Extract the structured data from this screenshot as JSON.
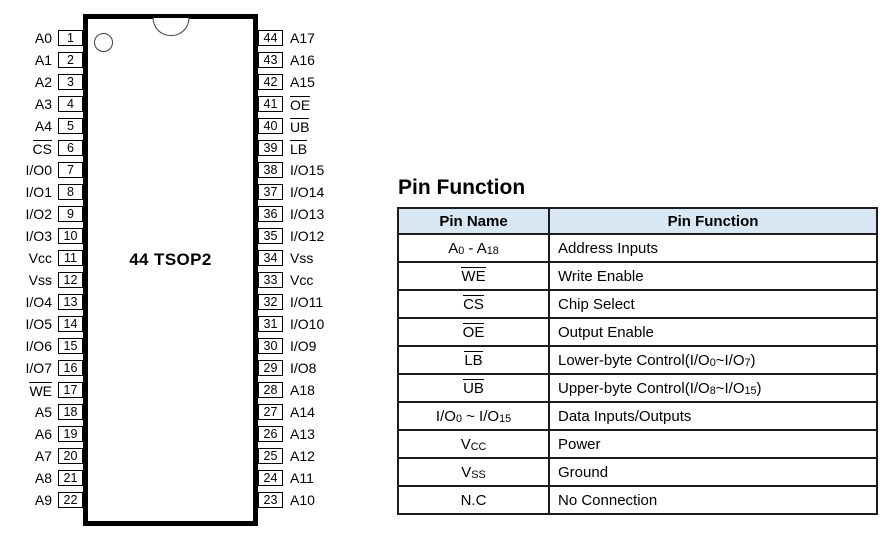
{
  "colors": {
    "header_bg": "#d9e7f4",
    "table_border": "#1c1c1c",
    "chip_border": "#000000"
  },
  "chip": {
    "title": "44 TSOP2",
    "left_pins": [
      {
        "num": "1",
        "label": "A0"
      },
      {
        "num": "2",
        "label": "A1"
      },
      {
        "num": "3",
        "label": "A2"
      },
      {
        "num": "4",
        "label": "A3"
      },
      {
        "num": "5",
        "label": "A4"
      },
      {
        "num": "6",
        "label": "CS",
        "overline": true
      },
      {
        "num": "7",
        "label": "I/O0"
      },
      {
        "num": "8",
        "label": "I/O1"
      },
      {
        "num": "9",
        "label": "I/O2"
      },
      {
        "num": "10",
        "label": "I/O3"
      },
      {
        "num": "11",
        "label": "Vcc"
      },
      {
        "num": "12",
        "label": "Vss"
      },
      {
        "num": "13",
        "label": "I/O4"
      },
      {
        "num": "14",
        "label": "I/O5"
      },
      {
        "num": "15",
        "label": "I/O6"
      },
      {
        "num": "16",
        "label": "I/O7"
      },
      {
        "num": "17",
        "label": "WE",
        "overline": true
      },
      {
        "num": "18",
        "label": "A5"
      },
      {
        "num": "19",
        "label": "A6"
      },
      {
        "num": "20",
        "label": "A7"
      },
      {
        "num": "21",
        "label": "A8"
      },
      {
        "num": "22",
        "label": "A9"
      }
    ],
    "right_pins": [
      {
        "num": "44",
        "label": "A17"
      },
      {
        "num": "43",
        "label": "A16"
      },
      {
        "num": "42",
        "label": "A15"
      },
      {
        "num": "41",
        "label": "OE",
        "overline": true
      },
      {
        "num": "40",
        "label": "UB",
        "overline": true
      },
      {
        "num": "39",
        "label": "LB",
        "overline": true
      },
      {
        "num": "38",
        "label": "I/O15"
      },
      {
        "num": "37",
        "label": "I/O14"
      },
      {
        "num": "36",
        "label": "I/O13"
      },
      {
        "num": "35",
        "label": "I/O12"
      },
      {
        "num": "34",
        "label": "Vss"
      },
      {
        "num": "33",
        "label": "Vcc"
      },
      {
        "num": "32",
        "label": "I/O11"
      },
      {
        "num": "31",
        "label": "I/O10"
      },
      {
        "num": "30",
        "label": "I/O9"
      },
      {
        "num": "29",
        "label": "I/O8"
      },
      {
        "num": "28",
        "label": "A18"
      },
      {
        "num": "27",
        "label": "A14"
      },
      {
        "num": "26",
        "label": "A13"
      },
      {
        "num": "25",
        "label": "A12"
      },
      {
        "num": "24",
        "label": "A11"
      },
      {
        "num": "23",
        "label": "A10"
      }
    ]
  },
  "table": {
    "section_title": "Pin Function",
    "headers": [
      "Pin Name",
      "Pin Function"
    ],
    "rows": [
      {
        "name": [
          {
            "t": "A"
          },
          {
            "t": "0",
            "sub": true
          },
          {
            "t": " - A"
          },
          {
            "t": "18",
            "sub": true
          }
        ],
        "function": "Address Inputs"
      },
      {
        "name": [
          {
            "t": "WE",
            "overline": true
          }
        ],
        "function": "Write Enable"
      },
      {
        "name": [
          {
            "t": "CS",
            "overline": true
          }
        ],
        "function": "Chip Select"
      },
      {
        "name": [
          {
            "t": "OE",
            "overline": true
          }
        ],
        "function": "Output Enable"
      },
      {
        "name": [
          {
            "t": "LB",
            "overline": true
          }
        ],
        "function": [
          {
            "t": "Lower-byte Control(I/O"
          },
          {
            "t": "0",
            "sub": true
          },
          {
            "t": "~I/O"
          },
          {
            "t": "7",
            "sub": true
          },
          {
            "t": ")"
          }
        ]
      },
      {
        "name": [
          {
            "t": "UB",
            "overline": true
          }
        ],
        "function": [
          {
            "t": "Upper-byte Control(I/O"
          },
          {
            "t": "8",
            "sub": true
          },
          {
            "t": "~I/O"
          },
          {
            "t": "15",
            "sub": true
          },
          {
            "t": ")"
          }
        ]
      },
      {
        "name": [
          {
            "t": "I/O"
          },
          {
            "t": "0",
            "sub": true
          },
          {
            "t": " ~ I/O"
          },
          {
            "t": "15",
            "sub": true
          }
        ],
        "function": "Data Inputs/Outputs"
      },
      {
        "name": [
          {
            "t": "V"
          },
          {
            "t": "CC",
            "sub": true
          }
        ],
        "function": "Power"
      },
      {
        "name": [
          {
            "t": "V"
          },
          {
            "t": "SS",
            "sub": true
          }
        ],
        "function": "Ground"
      },
      {
        "name": "N.C",
        "function": "No Connection"
      }
    ]
  }
}
